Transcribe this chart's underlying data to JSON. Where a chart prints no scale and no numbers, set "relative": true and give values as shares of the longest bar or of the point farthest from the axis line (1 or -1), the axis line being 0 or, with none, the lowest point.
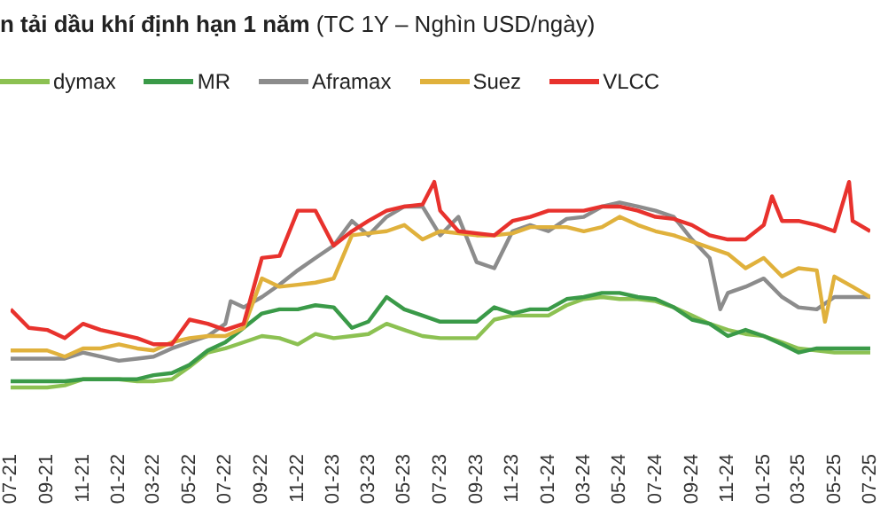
{
  "chart_data": {
    "type": "line",
    "title": "n tải dầu khí định hạn 1 năm",
    "subtitle": "(TC 1Y – Nghìn USD/ngày)",
    "relative": true,
    "legend": "top",
    "marker": "none",
    "line_style": "solid",
    "x": [
      "2021-07",
      "2021-08",
      "2021-09",
      "2021-10",
      "2021-11",
      "2021-12",
      "2022-01",
      "2022-02",
      "2022-03",
      "2022-04",
      "2022-05",
      "2022-06",
      "2022-07",
      "2022-08",
      "2022-09",
      "2022-10",
      "2022-11",
      "2022-12",
      "2023-01",
      "2023-02",
      "2023-03",
      "2023-04",
      "2023-05",
      "2023-06",
      "2023-07",
      "2023-08",
      "2023-09",
      "2023-10",
      "2023-11",
      "2023-12",
      "2024-01",
      "2024-02",
      "2024-03",
      "2024-04",
      "2024-05",
      "2024-06",
      "2024-07",
      "2024-08",
      "2024-09",
      "2024-10",
      "2024-11",
      "2024-12",
      "2025-01",
      "2025-02",
      "2025-03",
      "2025-04",
      "2025-05",
      "2025-06",
      "2025-07"
    ],
    "xlim": [
      "2021-07-01",
      "2025-07-01"
    ],
    "xticks": [
      {
        "value": "2021-07",
        "label": "07-21"
      },
      {
        "value": "2021-09",
        "label": "09-21"
      },
      {
        "value": "2021-11",
        "label": "11-21"
      },
      {
        "value": "2022-01",
        "label": "01-22"
      },
      {
        "value": "2022-03",
        "label": "03-22"
      },
      {
        "value": "2022-05",
        "label": "05-22"
      },
      {
        "value": "2022-07",
        "label": "07-22"
      },
      {
        "value": "2022-09",
        "label": "09-22"
      },
      {
        "value": "2022-11",
        "label": "11-22"
      },
      {
        "value": "2023-01",
        "label": "01-23"
      },
      {
        "value": "2023-03",
        "label": "03-23"
      },
      {
        "value": "2023-05",
        "label": "05-23"
      },
      {
        "value": "2023-07",
        "label": "07-23"
      },
      {
        "value": "2023-09",
        "label": "09-23"
      },
      {
        "value": "2023-11",
        "label": "11-23"
      },
      {
        "value": "2024-01",
        "label": "01-24"
      },
      {
        "value": "2024-03",
        "label": "03-24"
      },
      {
        "value": "2024-05",
        "label": "05-24"
      },
      {
        "value": "2024-07",
        "label": "07-24"
      },
      {
        "value": "2024-09",
        "label": "09-24"
      },
      {
        "value": "2024-11",
        "label": "11-24"
      },
      {
        "value": "2025-01",
        "label": "01-25"
      },
      {
        "value": "2025-03",
        "label": "03-25"
      },
      {
        "value": "2025-05",
        "label": "05-25"
      },
      {
        "value": "2025-07",
        "label": "07-25"
      }
    ],
    "series": [
      {
        "name": "dymax",
        "color": "#8cc152",
        "values": [
          0,
          0,
          0,
          0.01,
          0.04,
          0.04,
          0.04,
          0.03,
          0.03,
          0.04,
          0.1,
          0.17,
          0.19,
          0.22,
          0.25,
          0.24,
          0.21,
          0.26,
          0.24,
          0.25,
          0.26,
          0.31,
          0.28,
          0.25,
          0.24,
          0.24,
          0.24,
          0.33,
          0.35,
          0.35,
          0.35,
          0.4,
          0.43,
          0.44,
          0.43,
          0.43,
          0.42,
          0.39,
          0.35,
          0.31,
          0.28,
          0.26,
          0.25,
          0.22,
          0.19,
          0.18,
          0.17,
          0.17,
          0.17
        ]
      },
      {
        "name": "MR",
        "color": "#3a9a48",
        "values": [
          0.03,
          0.03,
          0.03,
          0.03,
          0.04,
          0.04,
          0.04,
          0.04,
          0.06,
          0.07,
          0.11,
          0.18,
          0.22,
          0.29,
          0.36,
          0.38,
          0.38,
          0.4,
          0.39,
          0.29,
          0.32,
          0.44,
          0.38,
          0.35,
          0.32,
          0.32,
          0.32,
          0.39,
          0.36,
          0.38,
          0.38,
          0.43,
          0.44,
          0.46,
          0.46,
          0.44,
          0.43,
          0.39,
          0.33,
          0.31,
          0.25,
          0.28,
          0.25,
          0.21,
          0.17,
          0.19,
          0.19,
          0.19,
          0.19
        ]
      },
      {
        "name": "Aframax",
        "color": "#8c8c8c",
        "x": [
          "2021-07",
          "2021-08",
          "2021-09",
          "2021-10",
          "2021-11",
          "2021-12",
          "2022-01",
          "2022-02",
          "2022-03",
          "2022-04",
          "2022-05",
          "2022-06",
          "2022-07",
          "2022-07-10",
          "2022-08",
          "2022-09",
          "2022-10",
          "2022-11",
          "2022-12",
          "2023-01",
          "2023-02",
          "2023-03",
          "2023-04",
          "2023-05",
          "2023-06",
          "2023-07",
          "2023-08",
          "2023-09",
          "2023-10",
          "2023-11",
          "2023-12",
          "2024-01",
          "2024-02",
          "2024-03",
          "2024-04",
          "2024-05",
          "2024-06",
          "2024-07",
          "2024-08",
          "2024-09",
          "2024-10",
          "2024-10-19",
          "2024-11",
          "2024-12",
          "2025-01",
          "2025-02",
          "2025-03",
          "2025-04",
          "2025-05",
          "2025-06",
          "2025-07"
        ],
        "values": [
          0.14,
          0.14,
          0.14,
          0.14,
          0.17,
          0.15,
          0.13,
          0.14,
          0.15,
          0.19,
          0.22,
          0.25,
          0.31,
          0.42,
          0.39,
          0.44,
          0.5,
          0.57,
          0.63,
          0.69,
          0.81,
          0.74,
          0.83,
          0.88,
          0.88,
          0.74,
          0.83,
          0.61,
          0.58,
          0.76,
          0.79,
          0.76,
          0.82,
          0.83,
          0.88,
          0.9,
          0.88,
          0.86,
          0.83,
          0.72,
          0.63,
          0.38,
          0.46,
          0.49,
          0.53,
          0.44,
          0.39,
          0.38,
          0.44,
          0.44,
          0.44
        ]
      },
      {
        "name": "Suez",
        "color": "#e0b13c",
        "x": [
          "2021-07",
          "2021-08",
          "2021-09",
          "2021-10",
          "2021-11",
          "2021-12",
          "2022-01",
          "2022-02",
          "2022-03",
          "2022-04",
          "2022-05",
          "2022-06",
          "2022-07",
          "2022-08",
          "2022-09",
          "2022-10",
          "2022-11",
          "2022-12",
          "2023-01",
          "2023-02",
          "2023-03",
          "2023-04",
          "2023-05",
          "2023-06",
          "2023-07",
          "2023-08",
          "2023-09",
          "2023-10",
          "2023-11",
          "2023-12",
          "2024-01",
          "2024-02",
          "2024-03",
          "2024-04",
          "2024-05",
          "2024-06",
          "2024-07",
          "2024-08",
          "2024-09",
          "2024-10",
          "2024-11",
          "2024-12",
          "2025-01",
          "2025-02",
          "2025-03",
          "2025-04",
          "2025-04-15",
          "2025-05",
          "2025-06",
          "2025-07"
        ],
        "values": [
          0.18,
          0.18,
          0.18,
          0.15,
          0.19,
          0.19,
          0.21,
          0.19,
          0.18,
          0.22,
          0.24,
          0.25,
          0.25,
          0.29,
          0.53,
          0.49,
          0.5,
          0.51,
          0.53,
          0.74,
          0.75,
          0.76,
          0.79,
          0.72,
          0.76,
          0.75,
          0.74,
          0.74,
          0.75,
          0.78,
          0.78,
          0.78,
          0.76,
          0.78,
          0.83,
          0.79,
          0.76,
          0.74,
          0.71,
          0.68,
          0.65,
          0.58,
          0.63,
          0.54,
          0.58,
          0.57,
          0.32,
          0.54,
          0.49,
          0.44
        ]
      },
      {
        "name": "VLCC",
        "color": "#e8322d",
        "x": [
          "2021-07",
          "2021-08",
          "2021-09",
          "2021-10",
          "2021-11",
          "2021-12",
          "2022-01",
          "2022-02",
          "2022-03",
          "2022-04",
          "2022-05",
          "2022-06",
          "2022-07",
          "2022-08",
          "2022-09",
          "2022-10",
          "2022-11",
          "2022-12",
          "2023-01",
          "2023-02",
          "2023-03",
          "2023-04",
          "2023-05",
          "2023-06",
          "2023-06-21",
          "2023-07",
          "2023-08",
          "2023-09",
          "2023-10",
          "2023-11",
          "2023-12",
          "2024-01",
          "2024-02",
          "2024-03",
          "2024-04",
          "2024-05",
          "2024-06",
          "2024-07",
          "2024-08",
          "2024-09",
          "2024-10",
          "2024-11",
          "2024-12",
          "2025-01",
          "2025-01-15",
          "2025-02",
          "2025-03",
          "2025-04",
          "2025-05",
          "2025-05-26",
          "2025-06",
          "2025-07"
        ],
        "values": [
          0.38,
          0.29,
          0.28,
          0.24,
          0.31,
          0.28,
          0.26,
          0.24,
          0.21,
          0.21,
          0.33,
          0.31,
          0.28,
          0.31,
          0.63,
          0.64,
          0.86,
          0.86,
          0.69,
          0.76,
          0.81,
          0.86,
          0.88,
          0.89,
          1,
          0.86,
          0.76,
          0.75,
          0.74,
          0.81,
          0.83,
          0.86,
          0.86,
          0.86,
          0.88,
          0.88,
          0.86,
          0.83,
          0.82,
          0.79,
          0.74,
          0.72,
          0.72,
          0.79,
          0.93,
          0.81,
          0.81,
          0.79,
          0.76,
          1,
          0.81,
          0.76
        ]
      }
    ]
  }
}
